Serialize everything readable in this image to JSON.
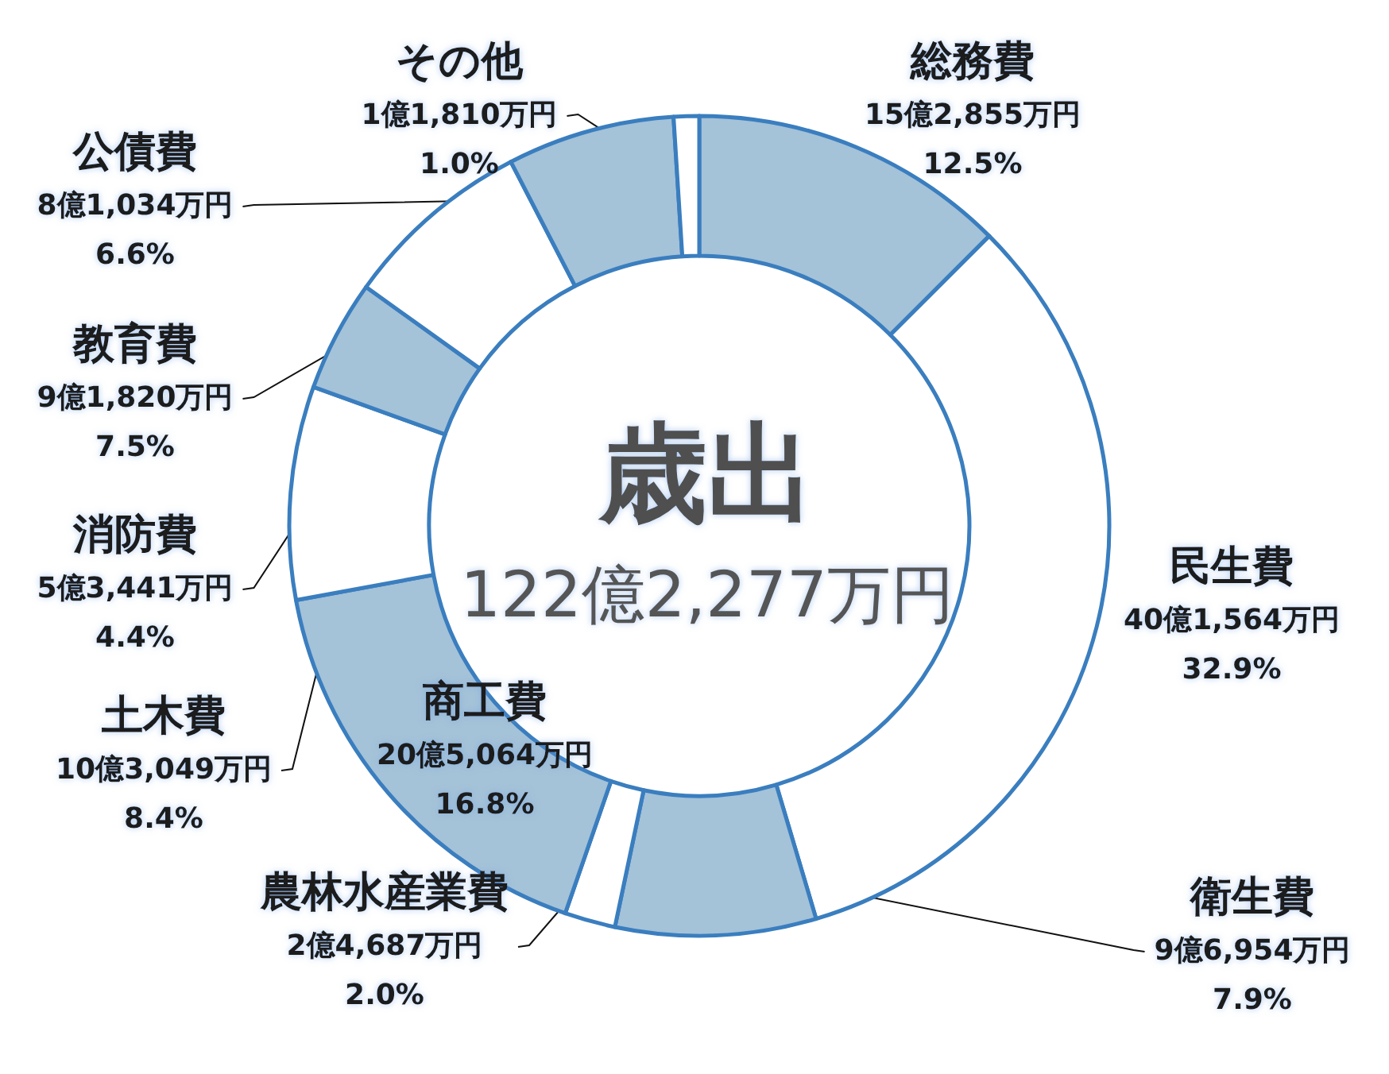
{
  "chart_data": {
    "type": "donut",
    "title": "歳出",
    "subtitle": "122億2,277万円",
    "categories": [
      "総務費",
      "民生費",
      "衛生費",
      "農林水産業費",
      "商工費",
      "土木費",
      "消防費",
      "教育費",
      "公債費",
      "その他"
    ],
    "values": [
      12.5,
      32.9,
      7.9,
      2.0,
      16.8,
      8.4,
      4.4,
      7.5,
      6.6,
      1.0
    ],
    "colors": [
      "#a4c2d8",
      "#ffffff",
      "#a4c2d8",
      "#ffffff",
      "#a4c2d8",
      "#ffffff",
      "#a4c2d8",
      "#ffffff",
      "#a4c2d8",
      "#ffffff"
    ],
    "value_labels": [
      "15億2,855万円\n12.5%",
      "40億1,564万円\n32.9%",
      "9億6,954万円\n7.9%",
      "2億4,687万円\n2.0%",
      "20億5,064万円\n16.8%",
      "10億3,049万円\n8.4%",
      "5億3,441万円\n4.4%",
      "9億1,820万円\n7.5%",
      "8億1,034万円\n6.6%",
      "1億1,810万円\n1.0%"
    ]
  }
}
